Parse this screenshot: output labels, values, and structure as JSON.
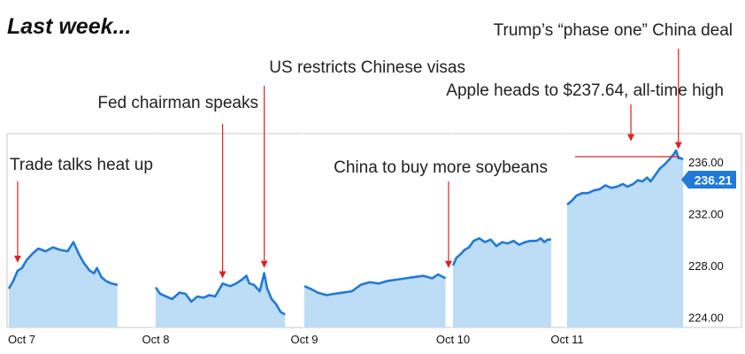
{
  "heading": "Last week...",
  "colors": {
    "line": "#1f7ad8",
    "fill": "#bddcf5",
    "arrow": "#e02020",
    "badge": "#1f7ad8",
    "frame": "#c9c9c9"
  },
  "chart_data": {
    "type": "area",
    "title": "",
    "xlabel": "",
    "ylabel": "",
    "ylim": [
      223.2,
      238.2
    ],
    "yticks": [
      "224.00",
      "228.00",
      "232.00",
      "236.00"
    ],
    "ytick_values": [
      224,
      228,
      232,
      236
    ],
    "xticks": [
      {
        "label": "Oct 7",
        "t": 0
      },
      {
        "label": "Oct 8",
        "t": 1
      },
      {
        "label": "Oct 9",
        "t": 2
      },
      {
        "label": "Oct 10",
        "t": 3
      },
      {
        "label": "Oct 11",
        "t": 4
      }
    ],
    "last_price": "236.21",
    "series": [
      {
        "day": "Oct 7",
        "points": [
          [
            0.0,
            226.2
          ],
          [
            0.03,
            226.8
          ],
          [
            0.06,
            227.6
          ],
          [
            0.09,
            227.8
          ],
          [
            0.12,
            228.4
          ],
          [
            0.16,
            228.9
          ],
          [
            0.2,
            229.3
          ],
          [
            0.25,
            229.1
          ],
          [
            0.3,
            229.4
          ],
          [
            0.35,
            229.2
          ],
          [
            0.4,
            229.1
          ],
          [
            0.44,
            229.8
          ],
          [
            0.48,
            228.8
          ],
          [
            0.51,
            228.2
          ],
          [
            0.55,
            227.6
          ],
          [
            0.58,
            227.4
          ],
          [
            0.6,
            227.8
          ],
          [
            0.63,
            227.1
          ],
          [
            0.66,
            226.8
          ],
          [
            0.7,
            226.6
          ],
          [
            0.74,
            226.5
          ]
        ]
      },
      {
        "day": "Oct 8",
        "points": [
          [
            1.0,
            226.3
          ],
          [
            1.03,
            225.8
          ],
          [
            1.07,
            225.6
          ],
          [
            1.11,
            225.4
          ],
          [
            1.16,
            225.9
          ],
          [
            1.2,
            225.8
          ],
          [
            1.24,
            225.2
          ],
          [
            1.28,
            225.6
          ],
          [
            1.32,
            225.5
          ],
          [
            1.36,
            225.7
          ],
          [
            1.4,
            225.6
          ],
          [
            1.45,
            226.6
          ],
          [
            1.5,
            226.4
          ],
          [
            1.54,
            226.6
          ],
          [
            1.58,
            226.9
          ],
          [
            1.61,
            227.2
          ],
          [
            1.63,
            226.6
          ],
          [
            1.66,
            226.5
          ],
          [
            1.7,
            226.0
          ],
          [
            1.73,
            227.4
          ],
          [
            1.75,
            226.2
          ],
          [
            1.78,
            225.4
          ],
          [
            1.81,
            225.0
          ],
          [
            1.84,
            224.4
          ],
          [
            1.87,
            224.2
          ]
        ]
      },
      {
        "day": "Oct 9",
        "points": [
          [
            2.0,
            226.4
          ],
          [
            2.04,
            226.2
          ],
          [
            2.09,
            225.9
          ],
          [
            2.15,
            225.7
          ],
          [
            2.2,
            225.8
          ],
          [
            2.26,
            225.9
          ],
          [
            2.32,
            226.0
          ],
          [
            2.38,
            226.5
          ],
          [
            2.44,
            226.7
          ],
          [
            2.5,
            226.6
          ],
          [
            2.56,
            226.8
          ],
          [
            2.62,
            226.9
          ],
          [
            2.68,
            227.0
          ],
          [
            2.74,
            227.1
          ],
          [
            2.8,
            227.2
          ],
          [
            2.86,
            227.0
          ],
          [
            2.9,
            227.3
          ],
          [
            2.95,
            227.0
          ]
        ]
      },
      {
        "day": "Oct 10",
        "points": [
          [
            3.0,
            228.0
          ],
          [
            3.03,
            228.6
          ],
          [
            3.07,
            228.9
          ],
          [
            3.1,
            229.2
          ],
          [
            3.14,
            229.4
          ],
          [
            3.18,
            229.9
          ],
          [
            3.23,
            230.1
          ],
          [
            3.28,
            229.8
          ],
          [
            3.33,
            230.0
          ],
          [
            3.38,
            229.5
          ],
          [
            3.43,
            229.8
          ],
          [
            3.48,
            229.7
          ],
          [
            3.53,
            229.9
          ],
          [
            3.58,
            229.6
          ],
          [
            3.63,
            229.8
          ],
          [
            3.68,
            229.9
          ],
          [
            3.73,
            229.9
          ],
          [
            3.77,
            230.1
          ],
          [
            3.8,
            229.8
          ],
          [
            3.83,
            230.0
          ],
          [
            3.86,
            230.0
          ]
        ]
      },
      {
        "day": "Oct 11",
        "points": [
          [
            4.0,
            232.7
          ],
          [
            4.04,
            233.0
          ],
          [
            4.08,
            233.4
          ],
          [
            4.13,
            233.6
          ],
          [
            4.18,
            233.6
          ],
          [
            4.23,
            233.8
          ],
          [
            4.28,
            233.9
          ],
          [
            4.33,
            234.2
          ],
          [
            4.38,
            234.0
          ],
          [
            4.43,
            234.1
          ],
          [
            4.48,
            234.3
          ],
          [
            4.52,
            234.1
          ],
          [
            4.57,
            234.3
          ],
          [
            4.61,
            234.6
          ],
          [
            4.65,
            234.5
          ],
          [
            4.69,
            234.8
          ],
          [
            4.72,
            234.5
          ],
          [
            4.76,
            235.0
          ],
          [
            4.8,
            235.5
          ],
          [
            4.84,
            235.8
          ],
          [
            4.88,
            236.2
          ],
          [
            4.9,
            236.4
          ],
          [
            4.92,
            236.6
          ],
          [
            4.94,
            236.9
          ],
          [
            4.96,
            236.3
          ],
          [
            4.98,
            236.3
          ],
          [
            5.0,
            236.21
          ]
        ]
      }
    ],
    "annotations": [
      {
        "text": "Trump’s “phase one” China deal",
        "t": 4.96,
        "y": 236.8
      },
      {
        "text": "US restricts Chinese visas",
        "t": 1.73,
        "y": 227.6
      },
      {
        "text": "Apple heads to $237.64, all-time high",
        "t": 4.55,
        "y": 237.4
      },
      {
        "text": "Fed chairman speaks",
        "t": 1.45,
        "y": 226.8
      },
      {
        "text": "Trade talks heat up",
        "t": 0.06,
        "y": 228.0
      },
      {
        "text": "China to buy more soybeans",
        "t": 2.97,
        "y": 227.6
      }
    ]
  }
}
